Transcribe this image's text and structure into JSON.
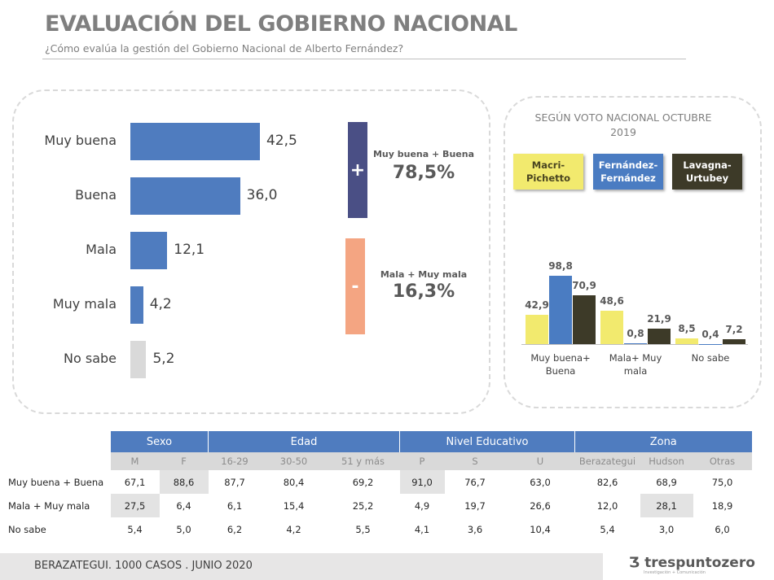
{
  "header": {
    "title": "EVALUACIÓN DEL GOBIERNO NACIONAL",
    "subtitle": "¿Cómo evalúa la gestión del Gobierno Nacional de Alberto Fernández?"
  },
  "chart_data": [
    {
      "type": "bar",
      "orientation": "horizontal",
      "categories": [
        "Muy buena",
        "Buena",
        "Mala",
        "Muy mala",
        "No sabe"
      ],
      "values": [
        42.5,
        36.0,
        12.1,
        4.2,
        5.2
      ],
      "labels": [
        "42,5",
        "36,0",
        "12,1",
        "4,2",
        "5,2"
      ],
      "colors": [
        "#4f7cbf",
        "#4f7cbf",
        "#4f7cbf",
        "#4f7cbf",
        "#d9d9d9"
      ]
    },
    {
      "type": "bar",
      "title": "SEGÚN VOTO NACIONAL OCTUBRE 2019",
      "categories": [
        "Muy buena+ Buena",
        "Mala+ Muy mala",
        "No sabe"
      ],
      "series": [
        {
          "name": "Macri- Pichetto",
          "color": "#f2ea6e",
          "text": "#4a4520",
          "values": [
            42.9,
            48.6,
            8.5
          ],
          "labels": [
            "42,9",
            "48,6",
            "8,5"
          ]
        },
        {
          "name": "Fernández- Fernández",
          "color": "#4a7cc2",
          "text": "#ffffff",
          "values": [
            98.8,
            0.8,
            0.4
          ],
          "labels": [
            "98,8",
            "0,8",
            "0,4"
          ]
        },
        {
          "name": "Lavagna- Urtubey",
          "color": "#3d3a28",
          "text": "#ffffff",
          "values": [
            70.9,
            21.9,
            7.2
          ],
          "labels": [
            "70,9",
            "21,9",
            "7,2"
          ]
        }
      ],
      "legend": "top"
    }
  ],
  "summary": {
    "pos_sign": "+",
    "pos_label": "Muy buena + Buena",
    "pos_value": "78,5%",
    "pos_color": "#4a4f85",
    "neg_sign": "-",
    "neg_label": "Mala + Muy mala",
    "neg_value": "16,3%",
    "neg_color": "#f4a582"
  },
  "table": {
    "groups": [
      {
        "label": "Sexo",
        "span": 2
      },
      {
        "label": "Edad",
        "span": 3
      },
      {
        "label": "Nivel Educativo",
        "span": 3
      },
      {
        "label": "Zona",
        "span": 3
      }
    ],
    "columns": [
      "M",
      "F",
      "16-29",
      "30-50",
      "51 y más",
      "P",
      "S",
      "U",
      "Berazategui",
      "Hudson",
      "Otras"
    ],
    "rows": [
      {
        "label": "Muy buena + Buena",
        "values": [
          "67,1",
          "88,6",
          "87,7",
          "80,4",
          "69,2",
          "91,0",
          "76,7",
          "63,0",
          "82,6",
          "68,9",
          "75,0"
        ],
        "highlight": [
          1,
          5
        ]
      },
      {
        "label": "Mala + Muy mala",
        "values": [
          "27,5",
          "6,4",
          "6,1",
          "15,4",
          "25,2",
          "4,9",
          "19,7",
          "26,6",
          "12,0",
          "28,1",
          "18,9"
        ],
        "highlight": [
          0,
          9
        ]
      },
      {
        "label": "No sabe",
        "values": [
          "5,4",
          "5,0",
          "6,2",
          "4,2",
          "5,5",
          "4,1",
          "3,6",
          "10,4",
          "5,4",
          "3,0",
          "6,0"
        ],
        "highlight": []
      }
    ]
  },
  "footer": {
    "text": "BERAZATEGUI. 1000 CASOS . JUNIO 2020",
    "logo": "trespuntozero",
    "logo_sub": "Investigación + Comunicación"
  }
}
